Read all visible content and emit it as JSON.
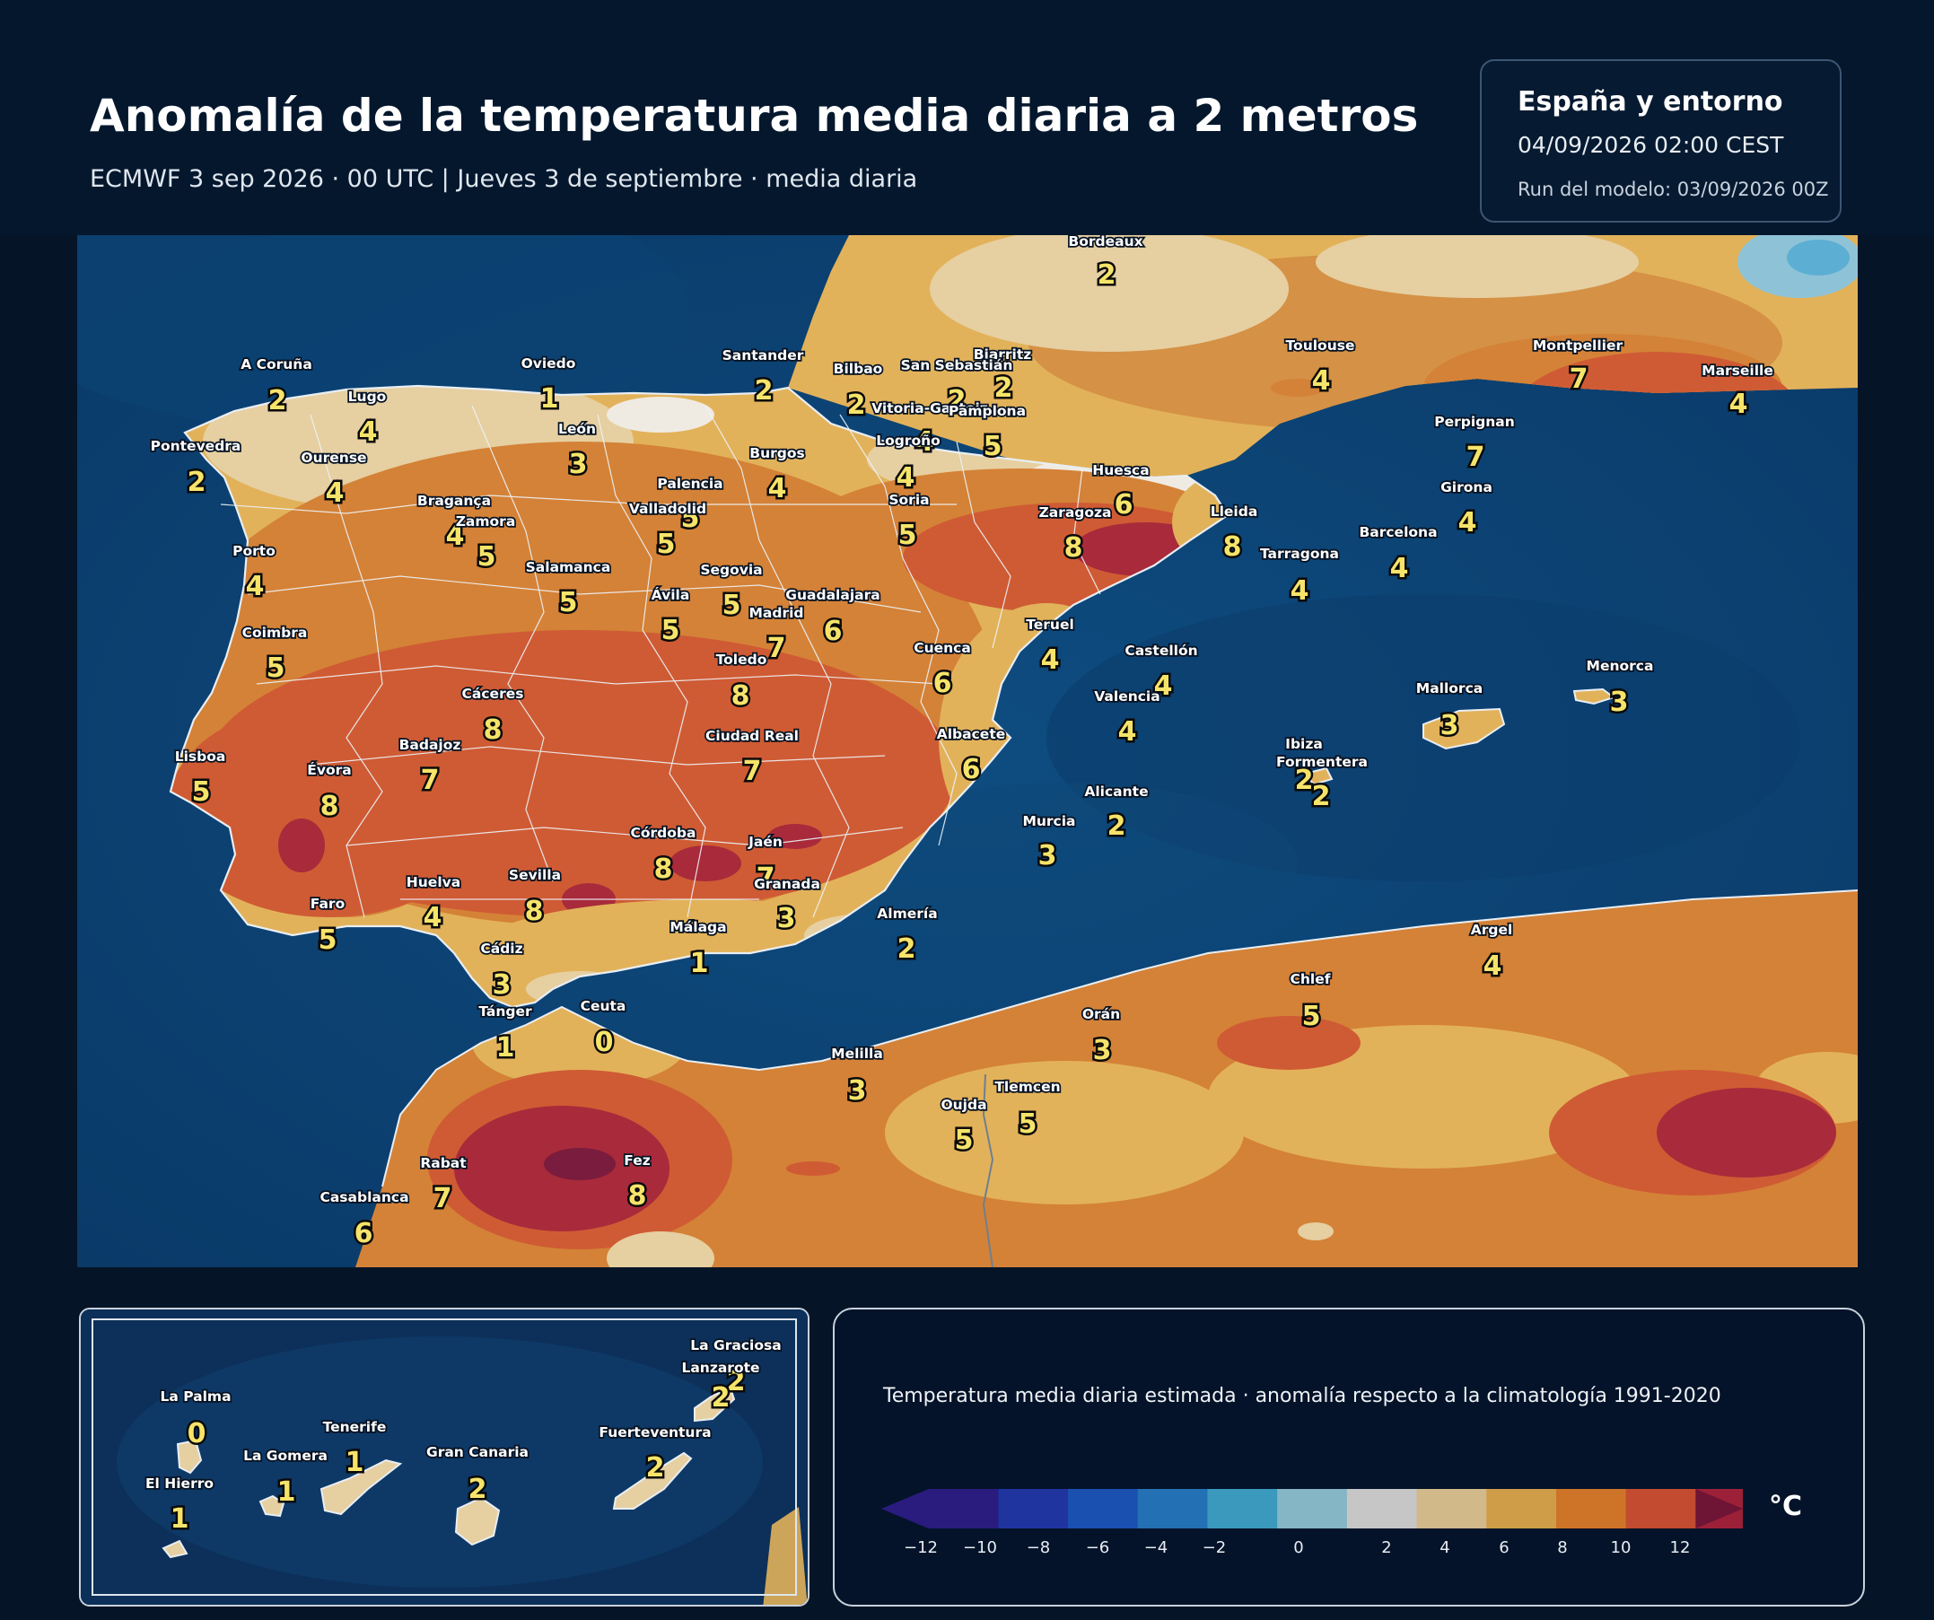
{
  "header": {
    "title": "Anomalía de la temperatura media diaria a 2 metros",
    "subtitle": "ECMWF 3 sep 2026 · 00 UTC  |  Jueves 3 de septiembre · media diaria"
  },
  "info": {
    "region": "España y entorno",
    "valid_time": "04/09/2026  02:00 CEST",
    "run": "Run del modelo: 03/09/2026 00Z"
  },
  "map_points": [
    {
      "name": "Bordeaux",
      "value": "2"
    },
    {
      "name": "Toulouse",
      "value": "4"
    },
    {
      "name": "Montpellier",
      "value": "7"
    },
    {
      "name": "Marseille",
      "value": "4"
    },
    {
      "name": "Perpignan",
      "value": "7"
    },
    {
      "name": "Biarritz",
      "value": "2"
    },
    {
      "name": "A Coruña",
      "value": "2"
    },
    {
      "name": "Oviedo",
      "value": "1"
    },
    {
      "name": "Santander",
      "value": "2"
    },
    {
      "name": "Bilbao",
      "value": "2"
    },
    {
      "name": "San Sebastián",
      "value": "2"
    },
    {
      "name": "Lugo",
      "value": "4"
    },
    {
      "name": "Vitoria-Gasteiz",
      "value": "4"
    },
    {
      "name": "Pamplona",
      "value": "5"
    },
    {
      "name": "Pontevedra",
      "value": "2"
    },
    {
      "name": "Ourense",
      "value": "4"
    },
    {
      "name": "León",
      "value": "3"
    },
    {
      "name": "Logroño",
      "value": "4"
    },
    {
      "name": "Burgos",
      "value": "4"
    },
    {
      "name": "Palencia",
      "value": "5"
    },
    {
      "name": "Huesca",
      "value": "6"
    },
    {
      "name": "Girona",
      "value": "4"
    },
    {
      "name": "Bragança",
      "value": "4"
    },
    {
      "name": "Valladolid",
      "value": "5"
    },
    {
      "name": "Soria",
      "value": "5"
    },
    {
      "name": "Zaragoza",
      "value": "8"
    },
    {
      "name": "Lleida",
      "value": "8"
    },
    {
      "name": "Zamora",
      "value": "5"
    },
    {
      "name": "Barcelona",
      "value": "4"
    },
    {
      "name": "Tarragona",
      "value": "4"
    },
    {
      "name": "Porto",
      "value": "4"
    },
    {
      "name": "Salamanca",
      "value": "5"
    },
    {
      "name": "Segovia",
      "value": "5"
    },
    {
      "name": "Ávila",
      "value": "5"
    },
    {
      "name": "Guadalajara",
      "value": "6"
    },
    {
      "name": "Madrid",
      "value": "7"
    },
    {
      "name": "Teruel",
      "value": "4"
    },
    {
      "name": "Coimbra",
      "value": "5"
    },
    {
      "name": "Cuenca",
      "value": "6"
    },
    {
      "name": "Toledo",
      "value": "8"
    },
    {
      "name": "Castellón",
      "value": "4"
    },
    {
      "name": "Menorca",
      "value": "3"
    },
    {
      "name": "Cáceres",
      "value": "8"
    },
    {
      "name": "Valencia",
      "value": "4"
    },
    {
      "name": "Mallorca",
      "value": "3"
    },
    {
      "name": "Badajoz",
      "value": "7"
    },
    {
      "name": "Ciudad Real",
      "value": "7"
    },
    {
      "name": "Albacete",
      "value": "6"
    },
    {
      "name": "Lisboa",
      "value": "5"
    },
    {
      "name": "Évora",
      "value": "8"
    },
    {
      "name": "Ibiza",
      "value": "2"
    },
    {
      "name": "Formentera",
      "value": "2"
    },
    {
      "name": "Alicante",
      "value": "2"
    },
    {
      "name": "Murcia",
      "value": "3"
    },
    {
      "name": "Córdoba",
      "value": "8"
    },
    {
      "name": "Jaén",
      "value": "7"
    },
    {
      "name": "Sevilla",
      "value": "8"
    },
    {
      "name": "Huelva",
      "value": "4"
    },
    {
      "name": "Granada",
      "value": "3"
    },
    {
      "name": "Faro",
      "value": "5"
    },
    {
      "name": "Almería",
      "value": "2"
    },
    {
      "name": "Málaga",
      "value": "1"
    },
    {
      "name": "Argel",
      "value": "4"
    },
    {
      "name": "Cádiz",
      "value": "3"
    },
    {
      "name": "Chlef",
      "value": "5"
    },
    {
      "name": "Tánger",
      "value": "1"
    },
    {
      "name": "Ceuta",
      "value": "0"
    },
    {
      "name": "Orán",
      "value": "3"
    },
    {
      "name": "Melilla",
      "value": "3"
    },
    {
      "name": "Tlemcen",
      "value": "5"
    },
    {
      "name": "Oujda",
      "value": "5"
    },
    {
      "name": "Fez",
      "value": "8"
    },
    {
      "name": "Rabat",
      "value": "7"
    },
    {
      "name": "Casablanca",
      "value": "6"
    }
  ],
  "canarias_points": [
    {
      "name": "La Graciosa",
      "value": "2"
    },
    {
      "name": "Lanzarote",
      "value": "2"
    },
    {
      "name": "La Palma",
      "value": "0"
    },
    {
      "name": "Fuerteventura",
      "value": "2"
    },
    {
      "name": "Tenerife",
      "value": "1"
    },
    {
      "name": "La Gomera",
      "value": "1"
    },
    {
      "name": "Gran Canaria",
      "value": "2"
    },
    {
      "name": "El Hierro",
      "value": "1"
    }
  ],
  "legend": {
    "caption": "Temperatura media diaria estimada · anomalía respecto a la climatología 1991-2020",
    "unit": "°C",
    "ticks": [
      "−12",
      "−10",
      "−8",
      "−6",
      "−4",
      "−2",
      "0",
      "2",
      "4",
      "6",
      "8",
      "10",
      "12"
    ],
    "bins": [
      -12,
      -10,
      -8,
      -6,
      -4,
      -2,
      -1,
      1,
      2,
      4,
      6,
      8,
      10,
      12
    ],
    "colors": [
      "#2a1b7e",
      "#2034a0",
      "#1a50b0",
      "#2370b4",
      "#3a99bc",
      "#84b6c6",
      "#c6c6c6",
      "#d1b98a",
      "#cf9d48",
      "#cd7428",
      "#c24b30",
      "#9c2038",
      "#6e1434"
    ]
  }
}
